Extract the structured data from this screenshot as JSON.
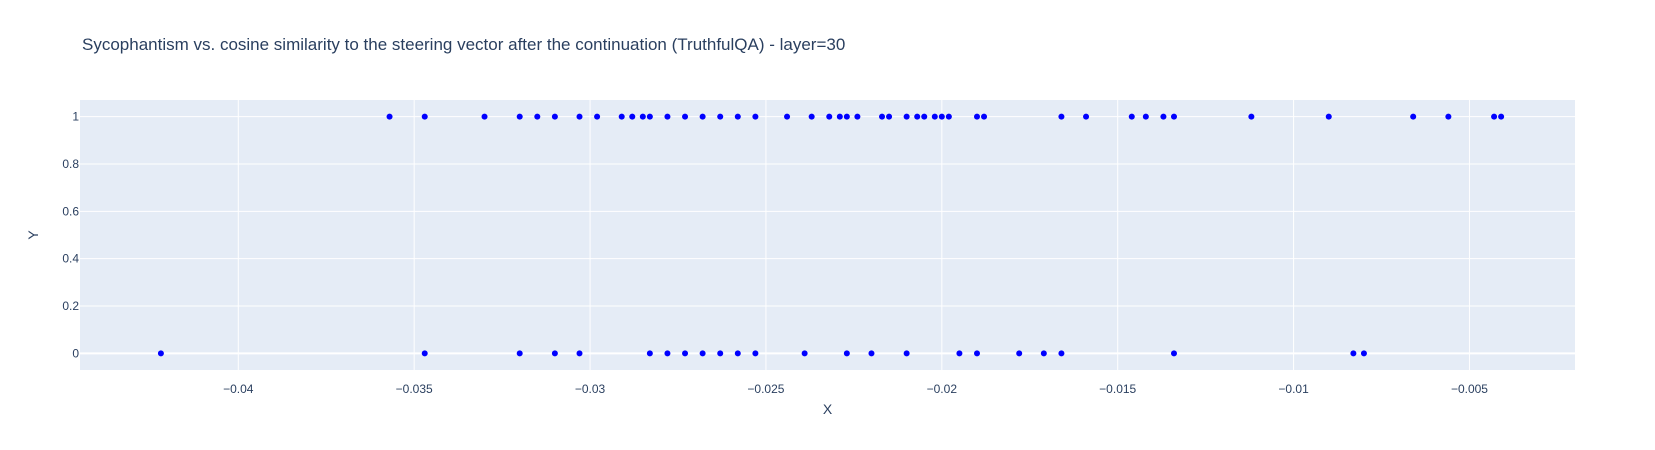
{
  "chart_data": {
    "type": "scatter",
    "title": "Sycophantism vs. cosine similarity to the steering vector after the continuation (TruthfulQA) - layer=30",
    "xlabel": "X",
    "ylabel": "Y",
    "xlim": [
      -0.0445,
      -0.002
    ],
    "ylim": [
      -0.07,
      1.07
    ],
    "x_ticks": [
      -0.04,
      -0.035,
      -0.03,
      -0.025,
      -0.02,
      -0.015,
      -0.01,
      -0.005
    ],
    "x_tick_labels": [
      "−0.04",
      "−0.035",
      "−0.03",
      "−0.025",
      "−0.02",
      "−0.015",
      "−0.01",
      "−0.005"
    ],
    "y_ticks": [
      0,
      0.2,
      0.4,
      0.6,
      0.8,
      1
    ],
    "y_tick_labels": [
      "0",
      "0.2",
      "0.4",
      "0.6",
      "0.8",
      "1"
    ],
    "grid": true,
    "marker_color": "#0000ff",
    "plot_bg": "#e5ecf6",
    "series": [
      {
        "points": [
          [
            -0.0357,
            1
          ],
          [
            -0.0347,
            1
          ],
          [
            -0.033,
            1
          ],
          [
            -0.032,
            1
          ],
          [
            -0.0315,
            1
          ],
          [
            -0.031,
            1
          ],
          [
            -0.0303,
            1
          ],
          [
            -0.0298,
            1
          ],
          [
            -0.0291,
            1
          ],
          [
            -0.0288,
            1
          ],
          [
            -0.0285,
            1
          ],
          [
            -0.0283,
            1
          ],
          [
            -0.0278,
            1
          ],
          [
            -0.0273,
            1
          ],
          [
            -0.0268,
            1
          ],
          [
            -0.0263,
            1
          ],
          [
            -0.0258,
            1
          ],
          [
            -0.0253,
            1
          ],
          [
            -0.0244,
            1
          ],
          [
            -0.0237,
            1
          ],
          [
            -0.0232,
            1
          ],
          [
            -0.0229,
            1
          ],
          [
            -0.0227,
            1
          ],
          [
            -0.0224,
            1
          ],
          [
            -0.0217,
            1
          ],
          [
            -0.0215,
            1
          ],
          [
            -0.021,
            1
          ],
          [
            -0.0207,
            1
          ],
          [
            -0.0205,
            1
          ],
          [
            -0.0202,
            1
          ],
          [
            -0.02,
            1
          ],
          [
            -0.0198,
            1
          ],
          [
            -0.019,
            1
          ],
          [
            -0.0188,
            1
          ],
          [
            -0.0166,
            1
          ],
          [
            -0.0159,
            1
          ],
          [
            -0.0146,
            1
          ],
          [
            -0.0142,
            1
          ],
          [
            -0.0137,
            1
          ],
          [
            -0.0134,
            1
          ],
          [
            -0.0112,
            1
          ],
          [
            -0.009,
            1
          ],
          [
            -0.0066,
            1
          ],
          [
            -0.0056,
            1
          ],
          [
            -0.0043,
            1
          ],
          [
            -0.0041,
            1
          ],
          [
            -0.0422,
            0
          ],
          [
            -0.0347,
            0
          ],
          [
            -0.032,
            0
          ],
          [
            -0.031,
            0
          ],
          [
            -0.0303,
            0
          ],
          [
            -0.0283,
            0
          ],
          [
            -0.0278,
            0
          ],
          [
            -0.0273,
            0
          ],
          [
            -0.0268,
            0
          ],
          [
            -0.0263,
            0
          ],
          [
            -0.0258,
            0
          ],
          [
            -0.0253,
            0
          ],
          [
            -0.0239,
            0
          ],
          [
            -0.0227,
            0
          ],
          [
            -0.022,
            0
          ],
          [
            -0.021,
            0
          ],
          [
            -0.0195,
            0
          ],
          [
            -0.019,
            0
          ],
          [
            -0.0178,
            0
          ],
          [
            -0.0171,
            0
          ],
          [
            -0.0166,
            0
          ],
          [
            -0.0134,
            0
          ],
          [
            -0.0083,
            0
          ],
          [
            -0.008,
            0
          ]
        ]
      }
    ]
  }
}
